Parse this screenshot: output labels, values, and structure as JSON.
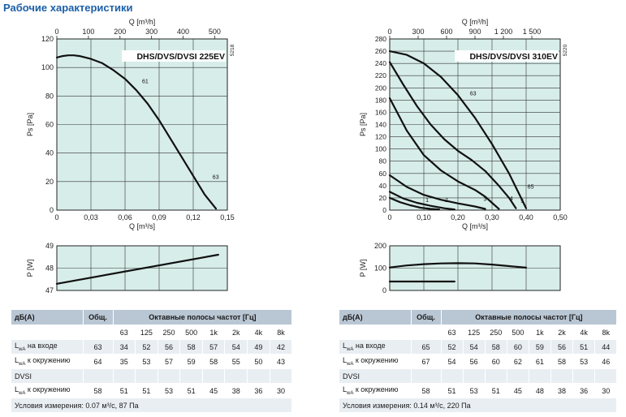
{
  "title": "Рабочие характеристики",
  "chart_data": [
    {
      "type": "line",
      "model": "DHS/DVS/DVSI 225EV",
      "code": "5218",
      "xlabel": "Q [m³/s]",
      "xlabel_top": "Q [m³/h]",
      "ylabel": "Ps [Pa]",
      "xlim": [
        0,
        0.15
      ],
      "x_ticks": [
        "0",
        "0,03",
        "0,06",
        "0,09",
        "0,12",
        "0,15"
      ],
      "x_top_lim": [
        0,
        540
      ],
      "x_top_ticks": [
        "0",
        "100",
        "200",
        "300",
        "400",
        "500"
      ],
      "ylim": [
        0,
        120
      ],
      "y_ticks": [
        "0",
        "20",
        "40",
        "60",
        "80",
        "100",
        "120"
      ],
      "grid": true,
      "series": [
        {
          "name": "",
          "x": [
            0,
            0.005,
            0.01,
            0.015,
            0.02,
            0.03,
            0.04,
            0.05,
            0.06,
            0.07,
            0.08,
            0.09,
            0.1,
            0.11,
            0.12,
            0.13,
            0.14
          ],
          "y": [
            107,
            108,
            108.5,
            108.5,
            108,
            106,
            103,
            98,
            92,
            84,
            74.5,
            63,
            50,
            37,
            24,
            11,
            1
          ]
        }
      ],
      "annotations": [
        {
          "text": "61",
          "x": 0.075,
          "y": 89
        },
        {
          "text": "63",
          "x": 0.137,
          "y": 22
        }
      ]
    },
    {
      "type": "line",
      "model": "DHS/DVS/DVSI 310EV",
      "code": "5220",
      "xlabel": "Q [m³/s]",
      "xlabel_top": "Q [m³/h]",
      "ylabel": "Ps [Pa]",
      "xlim": [
        0,
        0.5
      ],
      "x_ticks": [
        "0",
        "0,10",
        "0,20",
        "0,30",
        "0,40",
        "0,50"
      ],
      "x_top_lim": [
        0,
        1800
      ],
      "x_top_ticks": [
        "0",
        "300",
        "600",
        "900",
        "1 200",
        "1 500"
      ],
      "ylim": [
        0,
        280
      ],
      "y_ticks": [
        "0",
        "20",
        "40",
        "60",
        "80",
        "100",
        "120",
        "140",
        "160",
        "180",
        "200",
        "220",
        "240",
        "260",
        "280"
      ],
      "grid": true,
      "series": [
        {
          "name": "",
          "x": [
            0,
            0.05,
            0.1,
            0.15,
            0.2,
            0.25,
            0.3,
            0.35,
            0.4
          ],
          "y": [
            260,
            254,
            240,
            218,
            188,
            151,
            108,
            60,
            3
          ]
        },
        {
          "name": "",
          "x": [
            0,
            0.04,
            0.08,
            0.12,
            0.16,
            0.2,
            0.24,
            0.28,
            0.32,
            0.35,
            0.37
          ],
          "y": [
            242,
            205,
            170,
            140,
            116,
            97,
            82,
            64,
            40,
            20,
            3
          ]
        },
        {
          "name": "",
          "x": [
            0,
            0.05,
            0.1,
            0.15,
            0.2,
            0.25,
            0.28,
            0.3,
            0.32
          ],
          "y": [
            183,
            130,
            90,
            65,
            47,
            33,
            22,
            12,
            2
          ]
        },
        {
          "name": "",
          "x": [
            0,
            0.05,
            0.1,
            0.15,
            0.2,
            0.25,
            0.28
          ],
          "y": [
            57,
            38,
            25,
            17,
            11,
            6,
            2
          ]
        },
        {
          "name": "",
          "x": [
            0,
            0.04,
            0.08,
            0.12,
            0.16,
            0.19
          ],
          "y": [
            30,
            19,
            12,
            7,
            3,
            1
          ]
        },
        {
          "name": "",
          "x": [
            0,
            0.03,
            0.06,
            0.09,
            0.12,
            0.145
          ],
          "y": [
            20,
            13,
            8,
            4,
            2,
            1
          ]
        }
      ],
      "annotations": [
        {
          "text": "63",
          "x": 0.235,
          "y": 188
        },
        {
          "text": "65",
          "x": 0.404,
          "y": 35
        },
        {
          "text": "5",
          "x": 0.384,
          "y": 12
        },
        {
          "text": "4",
          "x": 0.352,
          "y": 16
        },
        {
          "text": "3",
          "x": 0.275,
          "y": 15
        },
        {
          "text": "2",
          "x": 0.162,
          "y": 13
        },
        {
          "text": "1",
          "x": 0.105,
          "y": 13
        }
      ]
    },
    {
      "type": "line",
      "ylabel": "P [W]",
      "xlim": [
        0,
        0.15
      ],
      "ylim": [
        47,
        49
      ],
      "y_ticks": [
        "47",
        "48",
        "49"
      ],
      "grid": true,
      "series": [
        {
          "name": "",
          "x": [
            0,
            0.142
          ],
          "y": [
            47.3,
            48.6
          ]
        }
      ]
    },
    {
      "type": "line",
      "ylabel": "P [W]",
      "xlim": [
        0,
        0.5
      ],
      "ylim": [
        0,
        200
      ],
      "y_ticks": [
        "0",
        "100",
        "200"
      ],
      "grid": true,
      "series": [
        {
          "name": "",
          "x": [
            0,
            0.05,
            0.1,
            0.15,
            0.2,
            0.25,
            0.3,
            0.35,
            0.4
          ],
          "y": [
            103,
            112,
            118,
            121,
            122,
            121,
            116,
            109,
            102
          ]
        },
        {
          "name": "",
          "x": [
            0,
            0.19
          ],
          "y": [
            40,
            40
          ]
        }
      ]
    }
  ],
  "tables": [
    {
      "header": [
        "дБ(A)",
        "Общ.",
        "Октавные полосы частот [Гц]"
      ],
      "bands": [
        "63",
        "125",
        "250",
        "500",
        "1k",
        "2k",
        "4k",
        "8k"
      ],
      "rows": [
        {
          "label_L": "L",
          "label_sub": "wA",
          "label_rest": " на входе",
          "values": [
            "63",
            "34",
            "52",
            "56",
            "58",
            "57",
            "54",
            "49",
            "42"
          ]
        },
        {
          "label_L": "L",
          "label_sub": "wA",
          "label_rest": " к окружению",
          "values": [
            "64",
            "35",
            "53",
            "57",
            "59",
            "58",
            "55",
            "50",
            "43"
          ]
        },
        {
          "label_L": "DVSI",
          "label_sub": "",
          "label_rest": "",
          "values": [
            "",
            "",
            "",
            "",
            "",
            "",
            "",
            "",
            ""
          ]
        },
        {
          "label_L": "L",
          "label_sub": "wA",
          "label_rest": " к окружению",
          "values": [
            "58",
            "51",
            "51",
            "53",
            "51",
            "45",
            "38",
            "36",
            "30"
          ]
        }
      ],
      "footer": "Условия измерения: 0.07 м³/с, 87 Па"
    },
    {
      "header": [
        "дБ(A)",
        "Общ.",
        "Октавные полосы частот [Гц]"
      ],
      "bands": [
        "63",
        "125",
        "250",
        "500",
        "1k",
        "2k",
        "4k",
        "8k"
      ],
      "rows": [
        {
          "label_L": "L",
          "label_sub": "wA",
          "label_rest": " на входе",
          "values": [
            "65",
            "52",
            "54",
            "58",
            "60",
            "59",
            "56",
            "51",
            "44"
          ]
        },
        {
          "label_L": "L",
          "label_sub": "wA",
          "label_rest": " к окружению",
          "values": [
            "67",
            "54",
            "56",
            "60",
            "62",
            "61",
            "58",
            "53",
            "46"
          ]
        },
        {
          "label_L": "DVSI",
          "label_sub": "",
          "label_rest": "",
          "values": [
            "",
            "",
            "",
            "",
            "",
            "",
            "",
            "",
            ""
          ]
        },
        {
          "label_L": "L",
          "label_sub": "wA",
          "label_rest": " к окружению",
          "values": [
            "58",
            "51",
            "53",
            "51",
            "45",
            "48",
            "38",
            "36",
            "30"
          ]
        }
      ],
      "footer": "Условия измерения: 0.14 м³/с, 220 Па"
    }
  ]
}
